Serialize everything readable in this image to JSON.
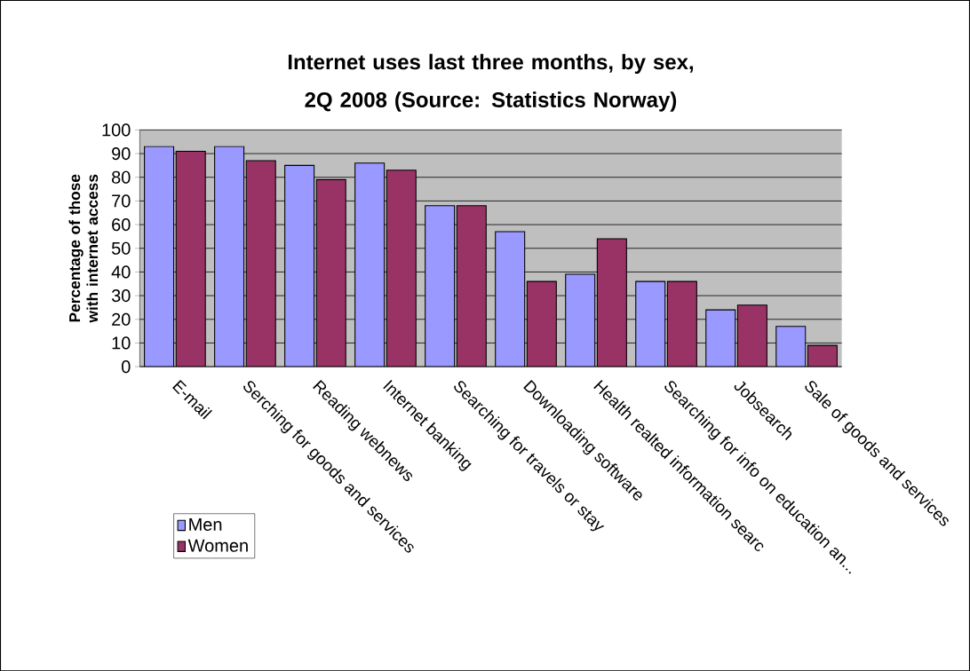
{
  "chart_data": {
    "type": "bar",
    "title": "Internet uses last three months, by sex, 2Q 2008 (Source: Statistics Norway)",
    "ylabel": "Percentage of those with internet access",
    "categories": [
      "E-mail",
      "Serching for goods and services",
      "Reading webnews",
      "Internet banking",
      "Searching for travels or stay",
      "Downloading software",
      "Health realted information searc",
      "Searching for info on education an...",
      "Jobsearch",
      "Sale of goods and services"
    ],
    "series": [
      {
        "name": "Men",
        "color": "#9999ff",
        "values": [
          93,
          93,
          85,
          86,
          68,
          57,
          39,
          36,
          24,
          17
        ]
      },
      {
        "name": "Women",
        "color": "#993366",
        "values": [
          91,
          87,
          79,
          83,
          68,
          36,
          54,
          36,
          26,
          9
        ]
      }
    ],
    "ylim": [
      0,
      100
    ],
    "yticks": [
      0,
      10,
      20,
      30,
      40,
      50,
      60,
      70,
      80,
      90,
      100
    ],
    "grid": "y",
    "legend": "bottom left"
  }
}
